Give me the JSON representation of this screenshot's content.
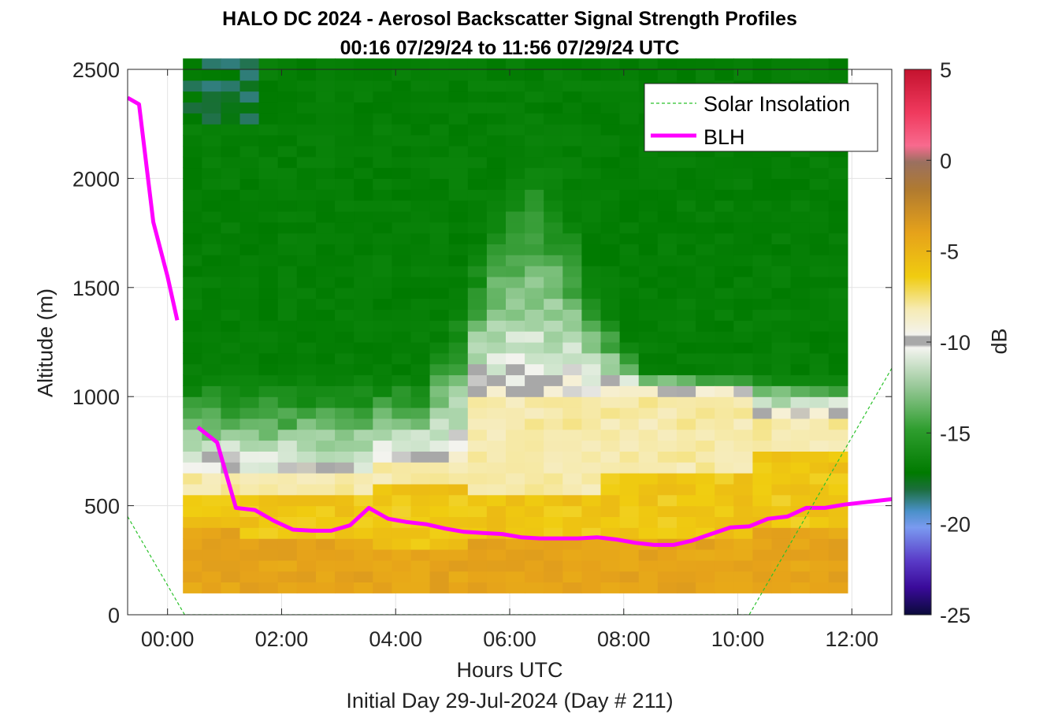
{
  "chart_data": {
    "type": "heatmap",
    "title": "HALO DC 2024 - Aerosol Backscatter Signal Strength Profiles",
    "subtitle": "00:16 07/29/24 to 11:56 07/29/24  UTC",
    "xlabel": "Hours UTC",
    "xlabel_sub": "Initial Day 29-Jul-2024 (Day # 211)",
    "ylabel": "Altitude (m)",
    "xlim": [
      -0.7,
      12.7
    ],
    "ylim": [
      0,
      2500
    ],
    "xticks": [
      0,
      2,
      4,
      6,
      8,
      10,
      12
    ],
    "xtick_labels": [
      "00:00",
      "02:00",
      "04:00",
      "06:00",
      "08:00",
      "10:00",
      "12:00"
    ],
    "yticks": [
      0,
      500,
      1000,
      1500,
      2000,
      2500
    ],
    "ytick_labels": [
      "0",
      "500",
      "1000",
      "1500",
      "2000",
      "2500"
    ],
    "grid": true,
    "colorbar": {
      "label": "dB",
      "range": [
        -25,
        5
      ],
      "ticks": [
        5,
        0,
        -5,
        -10,
        -15,
        -20,
        -25
      ],
      "tick_labels": [
        "5",
        "0",
        "-5",
        "-10",
        "-15",
        "-20",
        "-25"
      ]
    },
    "legend": {
      "placement": "top-right",
      "entries": [
        {
          "name": "Solar Insolation",
          "color": "#2bc22b",
          "style": "dashed"
        },
        {
          "name": "BLH",
          "color": "#ff00ff",
          "style": "solid"
        }
      ]
    },
    "heatmap": {
      "x_start": 0.27,
      "x_step": 0.333,
      "x_count": 35,
      "y_start": 100,
      "y_step": 50,
      "y_count": 49,
      "note": "dB value per cell generated from the profile model in the script",
      "transitions": [
        {
          "hours": [
            0.27,
            1.0
          ],
          "top_orange": 400,
          "top_yellow": 520,
          "top_white": 640
        },
        {
          "hours": [
            1.0,
            3.5
          ],
          "top_orange": 320,
          "top_yellow": 530,
          "top_white": 620
        },
        {
          "hours": [
            3.5,
            5.0
          ],
          "top_orange": 300,
          "top_yellow": 560,
          "top_white": 700
        },
        {
          "hours": [
            5.0,
            7.5
          ],
          "top_orange": 330,
          "top_yellow": 540,
          "top_white": 1000
        },
        {
          "hours": [
            7.5,
            10.0
          ],
          "top_orange": 350,
          "top_yellow": 650,
          "top_white": 1000
        },
        {
          "hours": [
            10.0,
            11.9
          ],
          "top_orange": 380,
          "top_yellow": 750,
          "top_white": 900
        }
      ]
    },
    "series": [
      {
        "name": "BLH",
        "color": "#ff00ff",
        "x": [
          -0.7,
          -0.5,
          -0.25,
          0.0,
          0.17
        ],
        "y": [
          2370,
          2340,
          1800,
          1550,
          1350
        ]
      },
      {
        "name": "BLH",
        "color": "#ff00ff",
        "x": [
          0.53,
          0.87,
          1.2,
          1.53,
          1.87,
          2.2,
          2.53,
          2.87,
          3.2,
          3.53,
          3.87,
          4.2,
          4.53,
          4.87,
          5.2,
          5.53,
          5.87,
          6.2,
          6.53,
          6.87,
          7.2,
          7.53,
          7.87,
          8.2,
          8.53,
          8.87,
          9.2,
          9.53,
          9.87,
          10.2,
          10.53,
          10.87,
          11.2,
          11.53,
          11.87,
          12.7
        ],
        "y": [
          860,
          790,
          490,
          480,
          430,
          390,
          385,
          385,
          410,
          490,
          440,
          425,
          415,
          395,
          380,
          375,
          370,
          355,
          350,
          350,
          350,
          355,
          345,
          330,
          320,
          320,
          340,
          370,
          400,
          405,
          440,
          450,
          490,
          490,
          505,
          530
        ]
      },
      {
        "name": "Solar Insolation",
        "color": "#2bc22b",
        "x": [
          -0.7,
          0.3,
          10.2,
          12.7
        ],
        "y": [
          450,
          0,
          0,
          1130
        ]
      }
    ]
  }
}
